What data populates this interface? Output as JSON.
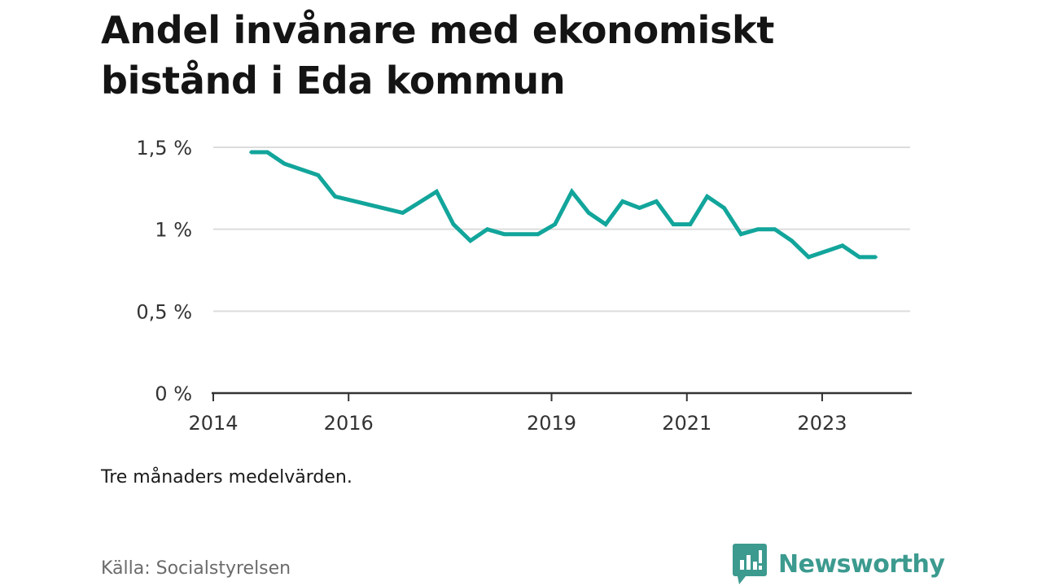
{
  "chart_data": {
    "type": "line",
    "title": "Andel invånare med ekonomiskt bistånd i Eda kommun",
    "xlabel": "",
    "ylabel": "",
    "x_ticks": [
      "2014",
      "2016",
      "2019",
      "2021",
      "2023"
    ],
    "x_tick_values": [
      2014,
      2016,
      2019,
      2021,
      2023
    ],
    "xlim": [
      2014,
      2024.3
    ],
    "y_ticks": [
      "0 %",
      "0,5 %",
      "1 %",
      "1,5 %"
    ],
    "y_tick_values": [
      0,
      0.5,
      1,
      1.5
    ],
    "ylim": [
      0,
      1.5
    ],
    "grid": true,
    "series": [
      {
        "color": "#12a59b",
        "points": [
          [
            2014.55,
            1.47
          ],
          [
            2014.8,
            1.47
          ],
          [
            2015.05,
            1.4
          ],
          [
            2015.55,
            1.33
          ],
          [
            2015.8,
            1.2
          ],
          [
            2016.8,
            1.1
          ],
          [
            2017.3,
            1.23
          ],
          [
            2017.55,
            1.03
          ],
          [
            2017.8,
            0.93
          ],
          [
            2018.05,
            1.0
          ],
          [
            2018.3,
            0.97
          ],
          [
            2018.55,
            0.97
          ],
          [
            2018.8,
            0.97
          ],
          [
            2019.05,
            1.03
          ],
          [
            2019.3,
            1.23
          ],
          [
            2019.55,
            1.1
          ],
          [
            2019.8,
            1.03
          ],
          [
            2020.05,
            1.17
          ],
          [
            2020.3,
            1.13
          ],
          [
            2020.55,
            1.17
          ],
          [
            2020.8,
            1.03
          ],
          [
            2021.05,
            1.03
          ],
          [
            2021.3,
            1.2
          ],
          [
            2021.55,
            1.13
          ],
          [
            2021.8,
            0.97
          ],
          [
            2022.05,
            1.0
          ],
          [
            2022.3,
            1.0
          ],
          [
            2022.55,
            0.93
          ],
          [
            2022.8,
            0.83
          ],
          [
            2023.3,
            0.9
          ],
          [
            2023.55,
            0.83
          ],
          [
            2023.8,
            0.83
          ]
        ]
      }
    ]
  },
  "note": "Tre månaders medelvärden.",
  "source": "Källa: Socialstyrelsen",
  "brand": {
    "name": "Newsworthy",
    "color": "#3c9a8f",
    "icon": "newsworthy-logo-icon"
  }
}
